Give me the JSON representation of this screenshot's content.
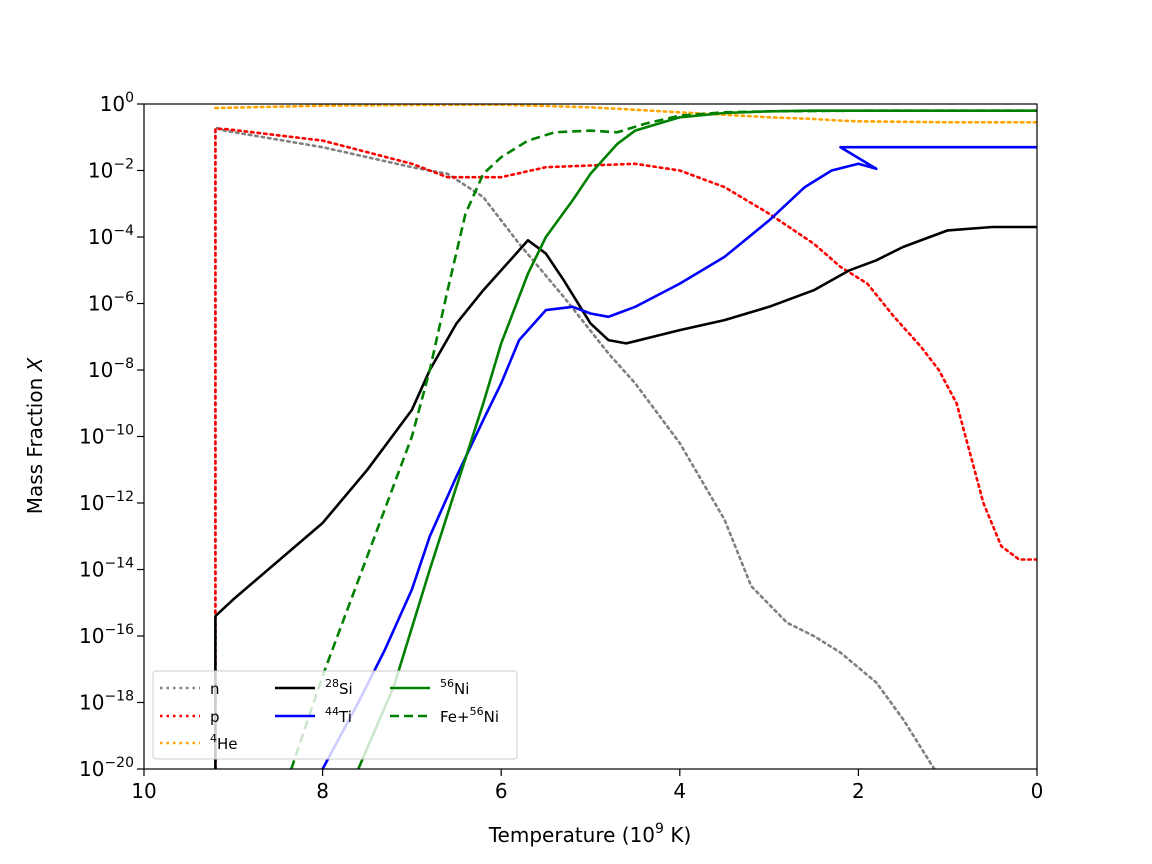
{
  "chart_data": {
    "type": "line",
    "title": "",
    "xlabel": "Temperature (10^9 K)",
    "xlabel_parts": {
      "prefix": "Temperature (10",
      "exp": "9",
      "suffix": " K)"
    },
    "ylabel": "Mass Fraction X",
    "ylabel_parts": {
      "text": "Mass Fraction ",
      "var": "X"
    },
    "xlim": [
      10,
      0
    ],
    "ylim_log10": [
      -20,
      0
    ],
    "y_scale": "log",
    "x_ticks": [
      {
        "value": 10,
        "label": "10"
      },
      {
        "value": 8,
        "label": "8"
      },
      {
        "value": 6,
        "label": "6"
      },
      {
        "value": 4,
        "label": "4"
      },
      {
        "value": 2,
        "label": "2"
      },
      {
        "value": 0,
        "label": "0"
      }
    ],
    "y_ticks": [
      {
        "value": 0,
        "base": "10",
        "exp": "0"
      },
      {
        "value": -2,
        "base": "10",
        "exp": "−2"
      },
      {
        "value": -4,
        "base": "10",
        "exp": "−4"
      },
      {
        "value": -6,
        "base": "10",
        "exp": "−6"
      },
      {
        "value": -8,
        "base": "10",
        "exp": "−8"
      },
      {
        "value": -10,
        "base": "10",
        "exp": "−10"
      },
      {
        "value": -12,
        "base": "10",
        "exp": "−12"
      },
      {
        "value": -14,
        "base": "10",
        "exp": "−14"
      },
      {
        "value": -16,
        "base": "10",
        "exp": "−16"
      },
      {
        "value": -18,
        "base": "10",
        "exp": "−18"
      },
      {
        "value": -20,
        "base": "10",
        "exp": "−20"
      }
    ],
    "legend_position": "lower-left",
    "series": [
      {
        "name": "n",
        "sup": "",
        "main": "n",
        "color": "#808080",
        "style": "dotted",
        "x": [
          9.2,
          9.2,
          9.1,
          8.0,
          7.0,
          6.6,
          6.2,
          5.8,
          5.3,
          4.8,
          4.5,
          4.0,
          3.5,
          3.2,
          2.8,
          2.5,
          2.2,
          1.8,
          1.5,
          1.15
        ],
        "log10y": [
          -20,
          -0.7,
          -0.8,
          -1.3,
          -1.9,
          -2.1,
          -2.8,
          -4.2,
          -5.8,
          -7.5,
          -8.4,
          -10.2,
          -12.5,
          -14.5,
          -15.6,
          -16.0,
          -16.5,
          -17.4,
          -18.5,
          -20.0
        ]
      },
      {
        "name": "p",
        "sup": "",
        "main": "p",
        "color": "#ff0000",
        "style": "dotted",
        "x": [
          9.2,
          9.2,
          9.1,
          8.0,
          7.0,
          6.6,
          6.0,
          5.5,
          5.0,
          4.5,
          4.0,
          3.5,
          3.0,
          2.5,
          2.2,
          1.9,
          1.6,
          1.3,
          1.1,
          0.9,
          0.75,
          0.6,
          0.4,
          0.2,
          0.0
        ],
        "log10y": [
          -20,
          -0.75,
          -0.75,
          -1.1,
          -1.8,
          -2.2,
          -2.2,
          -1.9,
          -1.85,
          -1.8,
          -2.0,
          -2.5,
          -3.3,
          -4.2,
          -4.9,
          -5.4,
          -6.4,
          -7.3,
          -8.0,
          -9.0,
          -10.5,
          -12.0,
          -13.3,
          -13.7,
          -13.7
        ]
      },
      {
        "name": "He4",
        "sup": "4",
        "main": "He",
        "color": "#ffa500",
        "style": "dotted",
        "x": [
          9.2,
          8.0,
          7.0,
          6.0,
          5.0,
          4.0,
          3.0,
          2.5,
          2.2,
          2.0,
          1.0,
          0.0
        ],
        "log10y": [
          -0.12,
          -0.05,
          -0.03,
          -0.02,
          -0.1,
          -0.25,
          -0.4,
          -0.45,
          -0.5,
          -0.52,
          -0.55,
          -0.55
        ]
      },
      {
        "name": "Si28",
        "sup": "28",
        "main": "Si",
        "color": "#000000",
        "style": "solid",
        "x": [
          9.2,
          9.2,
          9.0,
          8.0,
          7.5,
          7.0,
          6.8,
          6.5,
          6.2,
          6.0,
          5.8,
          5.7,
          5.5,
          5.3,
          5.0,
          4.8,
          4.6,
          4.3,
          4.0,
          3.5,
          3.0,
          2.5,
          2.1,
          1.8,
          1.5,
          1.2,
          1.0,
          0.5,
          0.0
        ],
        "log10y": [
          -20,
          -15.4,
          -14.9,
          -12.6,
          -11.0,
          -9.2,
          -8.0,
          -6.6,
          -5.6,
          -5.0,
          -4.4,
          -4.1,
          -4.5,
          -5.3,
          -6.6,
          -7.1,
          -7.2,
          -7.0,
          -6.8,
          -6.5,
          -6.1,
          -5.6,
          -5.0,
          -4.7,
          -4.3,
          -4.0,
          -3.8,
          -3.7,
          -3.7
        ]
      },
      {
        "name": "Ti44",
        "sup": "44",
        "main": "Ti",
        "color": "#0000ff",
        "style": "solid",
        "x": [
          8.0,
          7.6,
          7.3,
          7.0,
          6.8,
          6.5,
          6.2,
          6.0,
          5.8,
          5.5,
          5.2,
          5.0,
          4.8,
          4.7,
          4.5,
          4.0,
          3.5,
          3.0,
          2.6,
          2.3,
          2.0,
          1.8,
          2.2,
          1.0,
          0.0
        ],
        "log10y": [
          -20,
          -18.0,
          -16.4,
          -14.6,
          -13.0,
          -11.2,
          -9.5,
          -8.4,
          -7.1,
          -6.2,
          -6.1,
          -6.3,
          -6.4,
          -6.3,
          -6.1,
          -5.4,
          -4.6,
          -3.5,
          -2.5,
          -2.0,
          -1.8,
          -1.95,
          -1.3,
          -1.3,
          -1.3
        ]
      },
      {
        "name": "Ni56",
        "sup": "56",
        "main": "Ni",
        "color": "#008000",
        "style": "solid",
        "x": [
          7.6,
          7.2,
          6.8,
          6.5,
          6.2,
          6.0,
          5.7,
          5.5,
          5.2,
          5.0,
          4.7,
          4.5,
          4.0,
          3.5,
          3.0,
          2.5,
          2.0,
          1.0,
          0.0
        ],
        "log10y": [
          -20,
          -17.5,
          -14.0,
          -11.5,
          -9.0,
          -7.2,
          -5.1,
          -4.0,
          -2.9,
          -2.1,
          -1.2,
          -0.8,
          -0.4,
          -0.27,
          -0.22,
          -0.2,
          -0.2,
          -0.2,
          -0.2
        ]
      },
      {
        "name": "FeNi56",
        "sup": "56",
        "main": "Fe+",
        "mainSuffix": "Ni",
        "color": "#008000",
        "style": "dashed",
        "x": [
          8.35,
          8.0,
          7.5,
          7.0,
          6.8,
          6.6,
          6.4,
          6.2,
          6.0,
          5.7,
          5.4,
          5.0,
          4.7,
          4.4,
          4.0,
          3.5,
          3.0,
          2.0,
          0.0
        ],
        "log10y": [
          -20,
          -17.2,
          -13.6,
          -10.0,
          -8.0,
          -5.6,
          -3.3,
          -2.1,
          -1.6,
          -1.1,
          -0.85,
          -0.8,
          -0.85,
          -0.6,
          -0.35,
          -0.25,
          -0.22,
          -0.2,
          -0.2
        ]
      }
    ]
  }
}
